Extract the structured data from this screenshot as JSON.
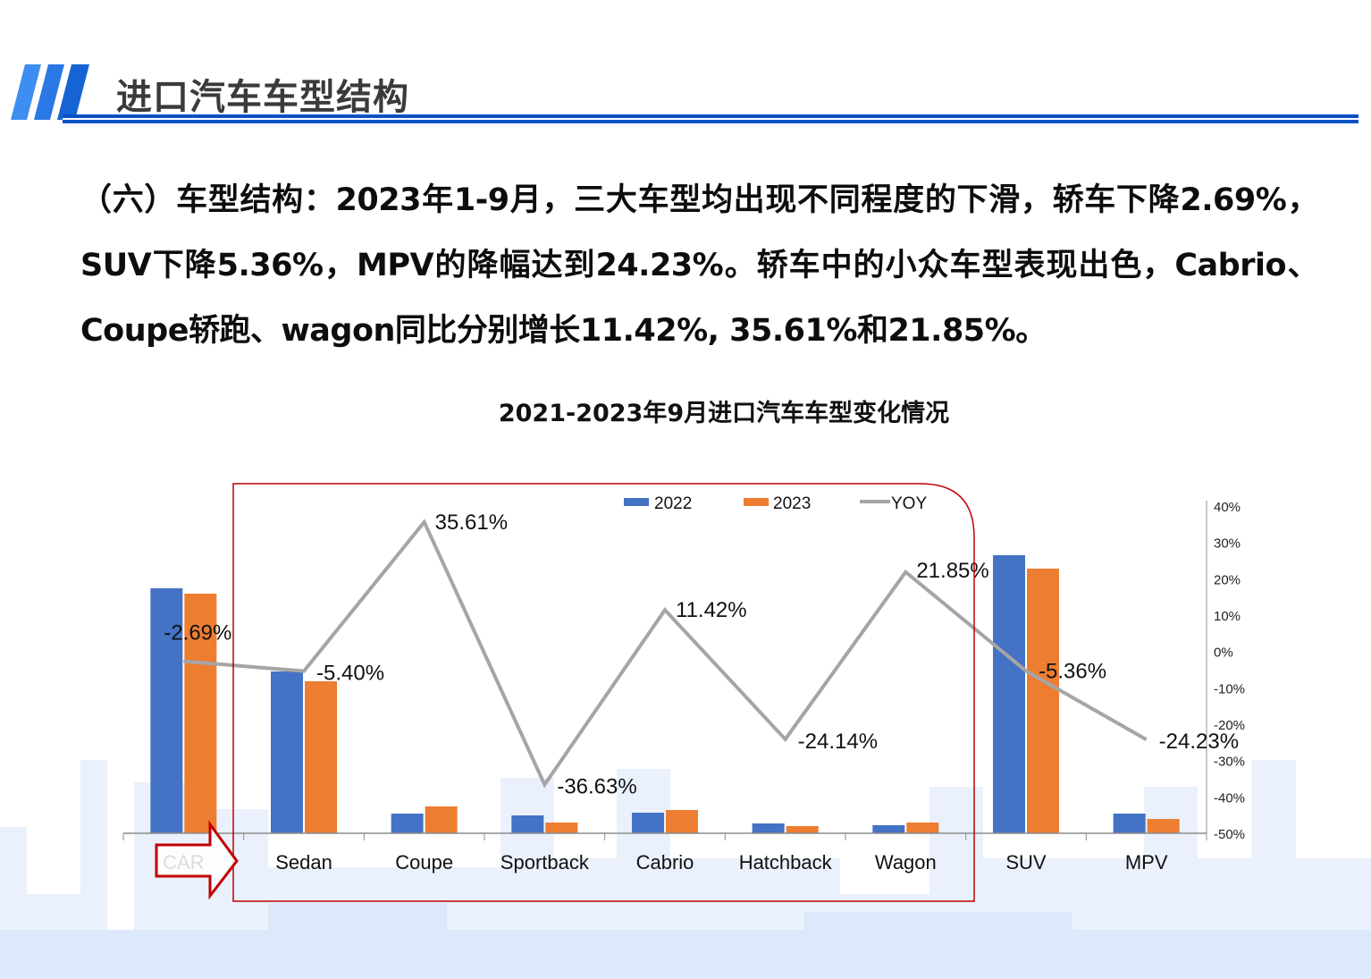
{
  "header": {
    "title": "进口汽车车型结构",
    "accent_color": "#0a52c4"
  },
  "paragraph": {
    "text": "（六）车型结构：2023年1-9月，三大车型均出现不同程度的下滑，轿车下降2.69%，SUV下降5.36%，MPV的降幅达到24.23%。轿车中的小众车型表现出色，Cabrio、Coupe轿跑、wagon同比分别增长11.42%, 35.61%和21.85%。"
  },
  "chart_title": "2021-2023年9月进口汽车车型变化情况",
  "legend": {
    "s2022": "2022",
    "s2023": "2023",
    "yoy": "YOY"
  },
  "colors": {
    "s2022": "#4472c4",
    "s2023": "#ed7d31",
    "yoy": "#a5a5a5",
    "highlight": "#c00000"
  },
  "chart_data": {
    "type": "bar+line",
    "title": "2021-2023年9月进口汽车车型变化情况",
    "categories": [
      "CAR",
      "Sedan",
      "Coupe",
      "Sportback",
      "Cabrio",
      "Hatchback",
      "Wagon",
      "SUV",
      "MPV"
    ],
    "series": [
      {
        "name": "2022",
        "type": "bar",
        "axis": "left",
        "values": [
          274,
          181,
          22,
          20,
          23,
          11,
          9,
          311,
          22
        ]
      },
      {
        "name": "2023",
        "type": "bar",
        "axis": "left",
        "values": [
          268,
          170,
          30,
          12,
          26,
          8,
          12,
          296,
          16
        ]
      },
      {
        "name": "YOY",
        "type": "line",
        "axis": "right",
        "values": [
          -2.69,
          -5.4,
          35.61,
          -36.63,
          11.42,
          -24.14,
          21.85,
          -5.36,
          -24.23
        ],
        "labels": [
          "-2.69%",
          "-5.40%",
          "35.61%",
          "-36.63%",
          "11.42%",
          "-24.14%",
          "21.85%",
          "-5.36%",
          "-24.23%"
        ]
      }
    ],
    "bar_values_note": "relative heights estimated from pixels; left axis unlabeled",
    "right_axis": {
      "ticks": [
        "40%",
        "30%",
        "20%",
        "10%",
        "0%",
        "-10%",
        "-20%",
        "-30%",
        "-40%",
        "-50%"
      ],
      "ylim": [
        -50,
        40
      ]
    },
    "legend_position": "top",
    "grid": false,
    "annotations": [
      {
        "type": "arrow",
        "label": "CAR",
        "color": "#c00000"
      },
      {
        "type": "rounded-box",
        "covers": [
          "Sedan",
          "Coupe",
          "Sportback",
          "Cabrio",
          "Hatchback",
          "Wagon"
        ],
        "color": "#c00000"
      }
    ]
  }
}
